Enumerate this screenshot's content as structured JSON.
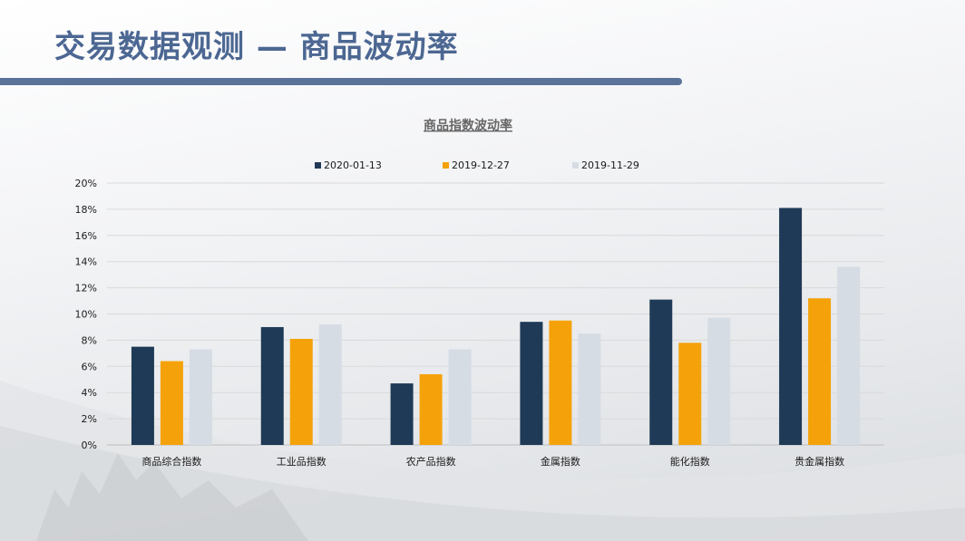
{
  "slide": {
    "title": "交易数据观测 — 商品波动率"
  },
  "colors": {
    "title": "#4c6792",
    "rule": "#5b7299",
    "series": [
      "#1f3a56",
      "#f5a20a",
      "#d6dce4"
    ]
  },
  "chart_data": {
    "type": "bar",
    "title": "商品指数波动率",
    "xlabel": "",
    "ylabel": "",
    "legend_position": "top",
    "grid": true,
    "ylim": [
      0,
      20
    ],
    "yticks": [
      "0%",
      "2%",
      "4%",
      "6%",
      "8%",
      "10%",
      "12%",
      "14%",
      "16%",
      "18%",
      "20%"
    ],
    "y_unit": "%",
    "categories": [
      "商品综合指数",
      "工业品指数",
      "农产品指数",
      "金属指数",
      "能化指数",
      "贵金属指数"
    ],
    "series": [
      {
        "name": "2020-01-13",
        "values": [
          7.5,
          9.0,
          4.7,
          9.4,
          11.1,
          18.1
        ]
      },
      {
        "name": "2019-12-27",
        "values": [
          6.4,
          8.1,
          5.4,
          9.5,
          7.8,
          11.2
        ]
      },
      {
        "name": "2019-11-29",
        "values": [
          7.3,
          9.2,
          7.3,
          8.5,
          9.7,
          13.6
        ]
      }
    ]
  }
}
